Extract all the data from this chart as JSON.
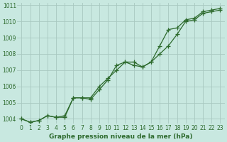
{
  "title": "Graphe pression niveau de la mer (hPa)",
  "x_labels": [
    "0",
    "1",
    "2",
    "3",
    "4",
    "5",
    "6",
    "7",
    "8",
    "9",
    "10",
    "11",
    "12",
    "13",
    "14",
    "15",
    "16",
    "17",
    "18",
    "19",
    "20",
    "21",
    "22",
    "23"
  ],
  "line1": [
    1004.0,
    1003.8,
    1003.9,
    1004.2,
    1004.1,
    1004.1,
    1005.3,
    1005.3,
    1005.2,
    1005.8,
    1006.4,
    1007.3,
    1007.5,
    1007.3,
    1007.2,
    1007.5,
    1008.0,
    1008.5,
    1009.2,
    1010.0,
    1010.1,
    1010.5,
    1010.6,
    1010.7
  ],
  "line2": [
    1004.0,
    1003.8,
    1003.9,
    1004.2,
    1004.1,
    1004.2,
    1005.3,
    1005.3,
    1005.3,
    1006.0,
    1006.5,
    1007.0,
    1007.5,
    1007.5,
    1007.2,
    1007.5,
    1008.5,
    1009.5,
    1009.6,
    1010.1,
    1010.2,
    1010.6,
    1010.7,
    1010.8
  ],
  "line_color": "#2d6a2d",
  "bg_color": "#c8e8e0",
  "grid_color": "#a8c8c0",
  "ylabel_min": 1004,
  "ylabel_max": 1011,
  "ylabel_step": 1,
  "marker": "+",
  "marker_size": 4,
  "line_width": 0.9,
  "tick_fontsize": 5.5,
  "xlabel_fontsize": 6.0,
  "title_fontsize": 6.5
}
